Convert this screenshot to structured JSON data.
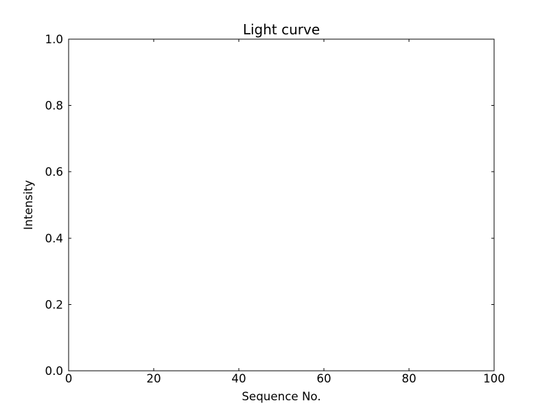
{
  "figure": {
    "background_color": "#ffffff",
    "axis_color": "#000000",
    "text_color": "#000000"
  },
  "chart_data": {
    "type": "line",
    "title": "Light curve",
    "xlabel": "Sequence No.",
    "ylabel": "Intensity",
    "xlim": [
      0,
      100
    ],
    "ylim": [
      0.0,
      1.0
    ],
    "xticks": [
      0,
      20,
      40,
      60,
      80,
      100
    ],
    "xtick_labels": [
      "0",
      "20",
      "40",
      "60",
      "80",
      "100"
    ],
    "yticks": [
      0.0,
      0.2,
      0.4,
      0.6,
      0.8,
      1.0
    ],
    "ytick_labels": [
      "0.0",
      "0.2",
      "0.4",
      "0.6",
      "0.8",
      "1.0"
    ],
    "grid": false,
    "legend": null,
    "series": []
  }
}
